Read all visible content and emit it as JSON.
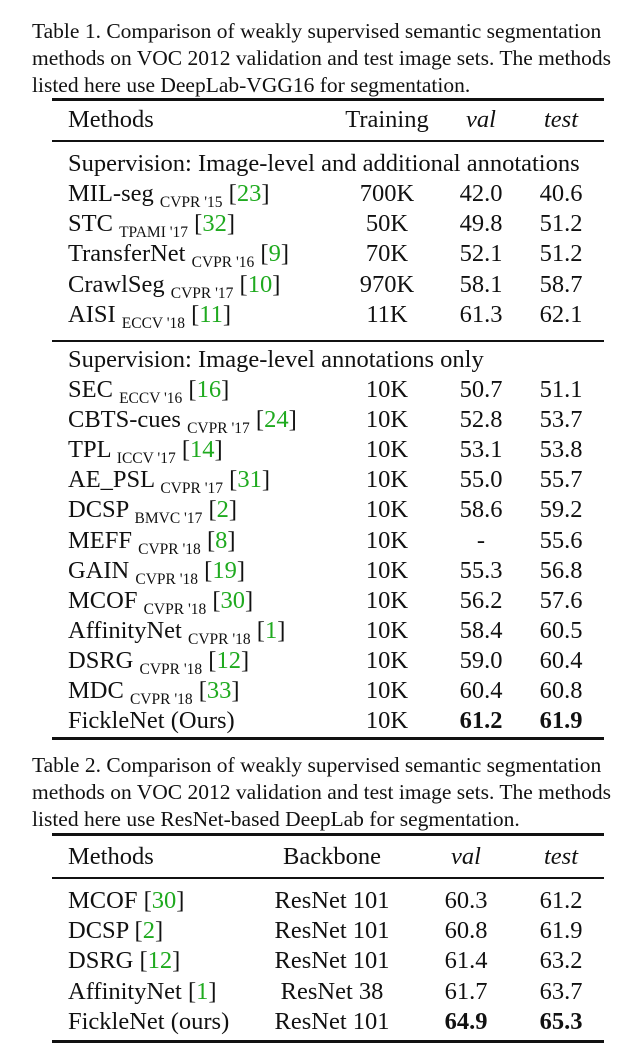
{
  "table1": {
    "caption": "Table 1. Comparison of weakly supervised semantic segmentation\nmethods on VOC 2012 validation and test image sets. The methods\nlisted here use DeepLab-VGG16 for segmentation.",
    "headers": [
      "Methods",
      "Training",
      "val",
      "test"
    ],
    "groups": [
      {
        "title": "Supervision: Image-level and additional annotations",
        "rows": [
          {
            "name": "MIL-seg",
            "venue": "CVPR '15",
            "cite": "23",
            "training": "700K",
            "val": "42.0",
            "test": "40.6"
          },
          {
            "name": "STC",
            "venue": "TPAMI '17",
            "cite": "32",
            "training": "50K",
            "val": "49.8",
            "test": "51.2"
          },
          {
            "name": "TransferNet",
            "venue": "CVPR '16",
            "cite": "9",
            "training": "70K",
            "val": "52.1",
            "test": "51.2"
          },
          {
            "name": "CrawlSeg",
            "venue": "CVPR '17",
            "cite": "10",
            "training": "970K",
            "val": "58.1",
            "test": "58.7"
          },
          {
            "name": "AISI",
            "venue": "ECCV '18",
            "cite": "11",
            "training": "11K",
            "val": "61.3",
            "test": "62.1"
          }
        ]
      },
      {
        "title": "Supervision: Image-level annotations only",
        "rows": [
          {
            "name": "SEC",
            "venue": "ECCV '16",
            "cite": "16",
            "training": "10K",
            "val": "50.7",
            "test": "51.1"
          },
          {
            "name": "CBTS-cues",
            "venue": "CVPR '17",
            "cite": "24",
            "training": "10K",
            "val": "52.8",
            "test": "53.7"
          },
          {
            "name": "TPL",
            "venue": "ICCV '17",
            "cite": "14",
            "training": "10K",
            "val": "53.1",
            "test": "53.8"
          },
          {
            "name": "AE_PSL",
            "venue": "CVPR '17",
            "cite": "31",
            "training": "10K",
            "val": "55.0",
            "test": "55.7"
          },
          {
            "name": "DCSP",
            "venue": "BMVC '17",
            "cite": "2",
            "training": "10K",
            "val": "58.6",
            "test": "59.2"
          },
          {
            "name": "MEFF",
            "venue": "CVPR '18",
            "cite": "8",
            "training": "10K",
            "val": "-",
            "test": "55.6"
          },
          {
            "name": "GAIN",
            "venue": "CVPR '18",
            "cite": "19",
            "training": "10K",
            "val": "55.3",
            "test": "56.8"
          },
          {
            "name": "MCOF",
            "venue": "CVPR '18",
            "cite": "30",
            "training": "10K",
            "val": "56.2",
            "test": "57.6"
          },
          {
            "name": "AffinityNet",
            "venue": "CVPR '18",
            "cite": "1",
            "training": "10K",
            "val": "58.4",
            "test": "60.5"
          },
          {
            "name": "DSRG",
            "venue": "CVPR '18",
            "cite": "12",
            "training": "10K",
            "val": "59.0",
            "test": "60.4"
          },
          {
            "name": "MDC",
            "venue": "CVPR '18",
            "cite": "33",
            "training": "10K",
            "val": "60.4",
            "test": "60.8"
          },
          {
            "name": "FickleNet (Ours)",
            "venue": "",
            "cite": "",
            "training": "10K",
            "val": "61.2",
            "test": "61.9",
            "bold_scores": true
          }
        ]
      }
    ]
  },
  "table2": {
    "caption": "Table 2. Comparison of weakly supervised semantic segmentation\nmethods on VOC 2012 validation and test image sets. The methods\nlisted here use ResNet-based DeepLab for segmentation.",
    "headers": [
      "Methods",
      "Backbone",
      "val",
      "test"
    ],
    "rows": [
      {
        "name": "MCOF",
        "cite": "30",
        "backbone": "ResNet 101",
        "val": "60.3",
        "test": "61.2"
      },
      {
        "name": "DCSP",
        "cite": "2",
        "backbone": "ResNet 101",
        "val": "60.8",
        "test": "61.9"
      },
      {
        "name": "DSRG",
        "cite": "12",
        "backbone": "ResNet 101",
        "val": "61.4",
        "test": "63.2"
      },
      {
        "name": "AffinityNet",
        "cite": "1",
        "backbone": "ResNet 38",
        "val": "61.7",
        "test": "63.7"
      },
      {
        "name": "FickleNet (ours)",
        "cite": "",
        "backbone": "ResNet 101",
        "val": "64.9",
        "test": "65.3",
        "bold_scores": true
      }
    ]
  },
  "colors": {
    "citation": "#1faa1f",
    "text": "#111111"
  }
}
